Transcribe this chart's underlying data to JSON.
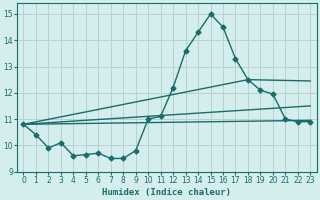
{
  "xlabel": "Humidex (Indice chaleur)",
  "bg_color": "#d4eeee",
  "grid_color": "#b8d0d0",
  "line_color": "#1a6b6b",
  "xlim": [
    -0.5,
    23.5
  ],
  "ylim": [
    9.0,
    15.4
  ],
  "yticks": [
    9,
    10,
    11,
    12,
    13,
    14,
    15
  ],
  "xticks": [
    0,
    1,
    2,
    3,
    4,
    5,
    6,
    7,
    8,
    9,
    10,
    11,
    12,
    13,
    14,
    15,
    16,
    17,
    18,
    19,
    20,
    21,
    22,
    23
  ],
  "series1_x": [
    0,
    1,
    2,
    3,
    4,
    5,
    6,
    7,
    8,
    9,
    10,
    11,
    12,
    13,
    14,
    15,
    16,
    17,
    18,
    19,
    20,
    21,
    22,
    23
  ],
  "series1_y": [
    10.8,
    10.4,
    9.9,
    10.1,
    9.6,
    9.65,
    9.7,
    9.5,
    9.5,
    9.8,
    11.0,
    11.1,
    12.2,
    13.6,
    14.3,
    15.0,
    14.5,
    13.3,
    12.5,
    12.1,
    11.95,
    11.0,
    10.9,
    10.9
  ],
  "line2_x": [
    0,
    23
  ],
  "line2_y": [
    10.8,
    10.95
  ],
  "line3_x": [
    0,
    23
  ],
  "line3_y": [
    10.8,
    11.5
  ],
  "line4_x": [
    0,
    18,
    23
  ],
  "line4_y": [
    10.8,
    12.5,
    12.45
  ],
  "marker_size": 2.5,
  "line_width": 1.0
}
